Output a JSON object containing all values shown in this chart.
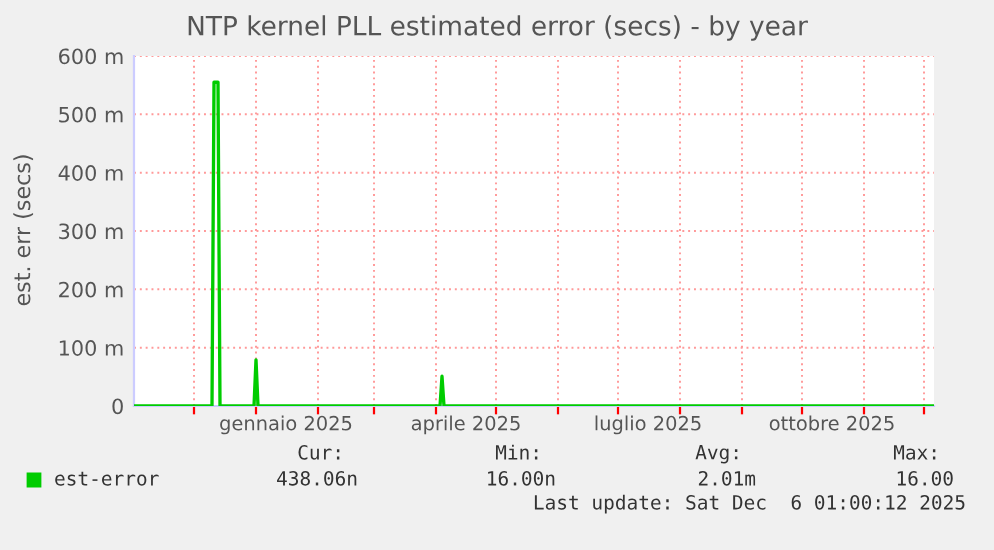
{
  "chart_data": {
    "type": "line",
    "title": "NTP kernel PLL estimated error (secs) - by year",
    "ylabel": "est. err (secs)",
    "x": [
      "2024-11-01",
      "2024-12-10",
      "2024-12-11",
      "2024-12-13",
      "2024-12-14",
      "2024-12-31",
      "2025-01-01",
      "2025-01-02",
      "2025-04-03",
      "2025-04-04",
      "2025-04-05",
      "2025-12-06"
    ],
    "series": [
      {
        "name": "est-error",
        "color": "#00cc00",
        "values": [
          0,
          0,
          555,
          555,
          0,
          0,
          79,
          0,
          0,
          51,
          0,
          0
        ]
      }
    ],
    "xlim": [
      "2024-11-01",
      "2025-12-06"
    ],
    "xticks": [
      {
        "value": "2024-12-01",
        "label": null
      },
      {
        "value": "2025-01-01",
        "label": null
      },
      {
        "value": "2025-01-16",
        "label": "gennaio 2025"
      },
      {
        "value": "2025-02-01",
        "label": null
      },
      {
        "value": "2025-03-01",
        "label": null
      },
      {
        "value": "2025-04-01",
        "label": null
      },
      {
        "value": "2025-04-16",
        "label": "aprile 2025"
      },
      {
        "value": "2025-05-01",
        "label": null
      },
      {
        "value": "2025-06-01",
        "label": null
      },
      {
        "value": "2025-07-01",
        "label": null
      },
      {
        "value": "2025-07-16",
        "label": "luglio 2025"
      },
      {
        "value": "2025-08-01",
        "label": null
      },
      {
        "value": "2025-09-01",
        "label": null
      },
      {
        "value": "2025-10-01",
        "label": null
      },
      {
        "value": "2025-10-16",
        "label": "ottobre 2025"
      },
      {
        "value": "2025-11-01",
        "label": null
      },
      {
        "value": "2025-12-01",
        "label": null
      }
    ],
    "ylim": [
      0,
      600
    ],
    "yticks": [
      0,
      {
        "value": 100,
        "label": "100 m"
      },
      {
        "value": 200,
        "label": "200 m"
      },
      {
        "value": 300,
        "label": "300 m"
      },
      {
        "value": 400,
        "label": "400 m"
      },
      {
        "value": 500,
        "label": "500 m"
      },
      {
        "value": 600,
        "label": "600 m"
      }
    ],
    "grid": true,
    "legend": "bottom left",
    "annotations": [
      "Cur:",
      "Min:",
      "Avg:",
      "Max:",
      "438.06n",
      "16.00n",
      "2.01m",
      "16.00",
      "Last update: Sat Dec  6 01:00:12 2025"
    ]
  }
}
